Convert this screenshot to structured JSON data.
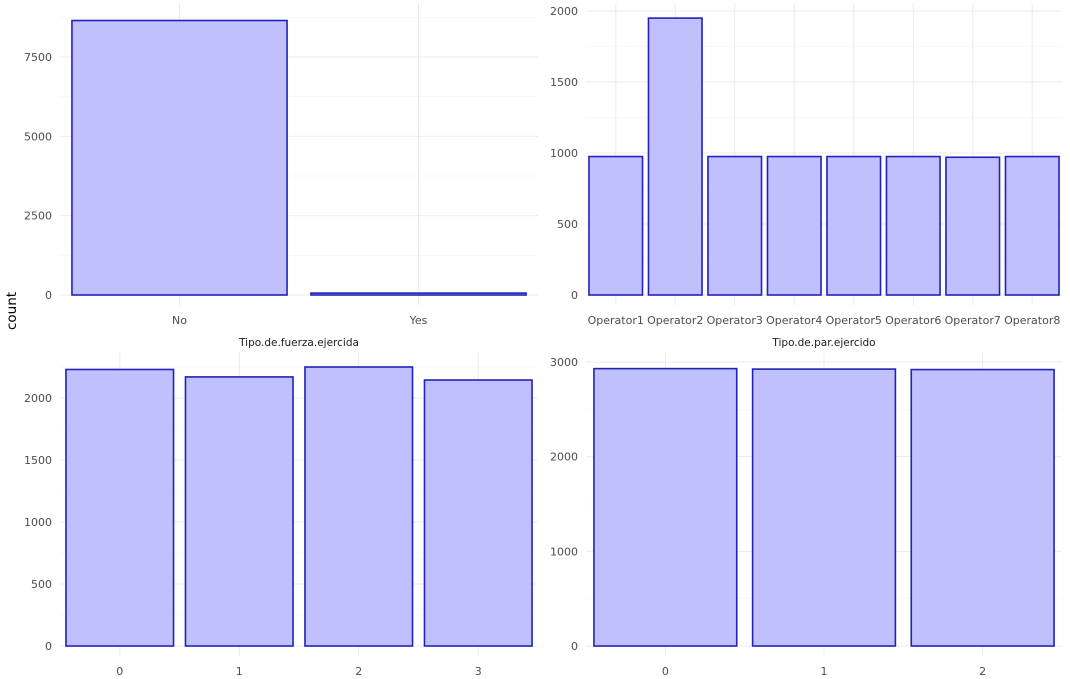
{
  "y_label": "count",
  "chart_data": [
    {
      "type": "bar",
      "title": "",
      "categories": [
        "No",
        "Yes"
      ],
      "values": [
        8650,
        60
      ],
      "xlabel": "",
      "ylabel": "count",
      "ylim": [
        0,
        9000
      ],
      "yticks": [
        0,
        2500,
        5000,
        7500
      ],
      "grid": true
    },
    {
      "type": "bar",
      "title": "",
      "categories": [
        "Operator1",
        "Operator2",
        "Operator3",
        "Operator4",
        "Operator5",
        "Operator6",
        "Operator7",
        "Operator8"
      ],
      "values": [
        975,
        1950,
        975,
        975,
        975,
        975,
        970,
        975
      ],
      "xlabel": "",
      "ylabel": "count",
      "ylim": [
        0,
        2000
      ],
      "yticks": [
        0,
        500,
        1000,
        1500,
        2000
      ],
      "grid": true
    },
    {
      "type": "bar",
      "title": "Tipo.de.fuerza.ejercida",
      "categories": [
        "0",
        "1",
        "2",
        "3"
      ],
      "values": [
        2230,
        2170,
        2250,
        2145
      ],
      "xlabel": "",
      "ylabel": "count",
      "ylim": [
        0,
        2300
      ],
      "yticks": [
        0,
        500,
        1000,
        1500,
        2000
      ],
      "grid": true
    },
    {
      "type": "bar",
      "title": "Tipo.de.par.ejercido",
      "categories": [
        "0",
        "1",
        "2"
      ],
      "values": [
        2930,
        2925,
        2920
      ],
      "xlabel": "",
      "ylabel": "count",
      "ylim": [
        0,
        3000
      ],
      "yticks": [
        0,
        1000,
        2000,
        3000
      ],
      "grid": true
    }
  ]
}
